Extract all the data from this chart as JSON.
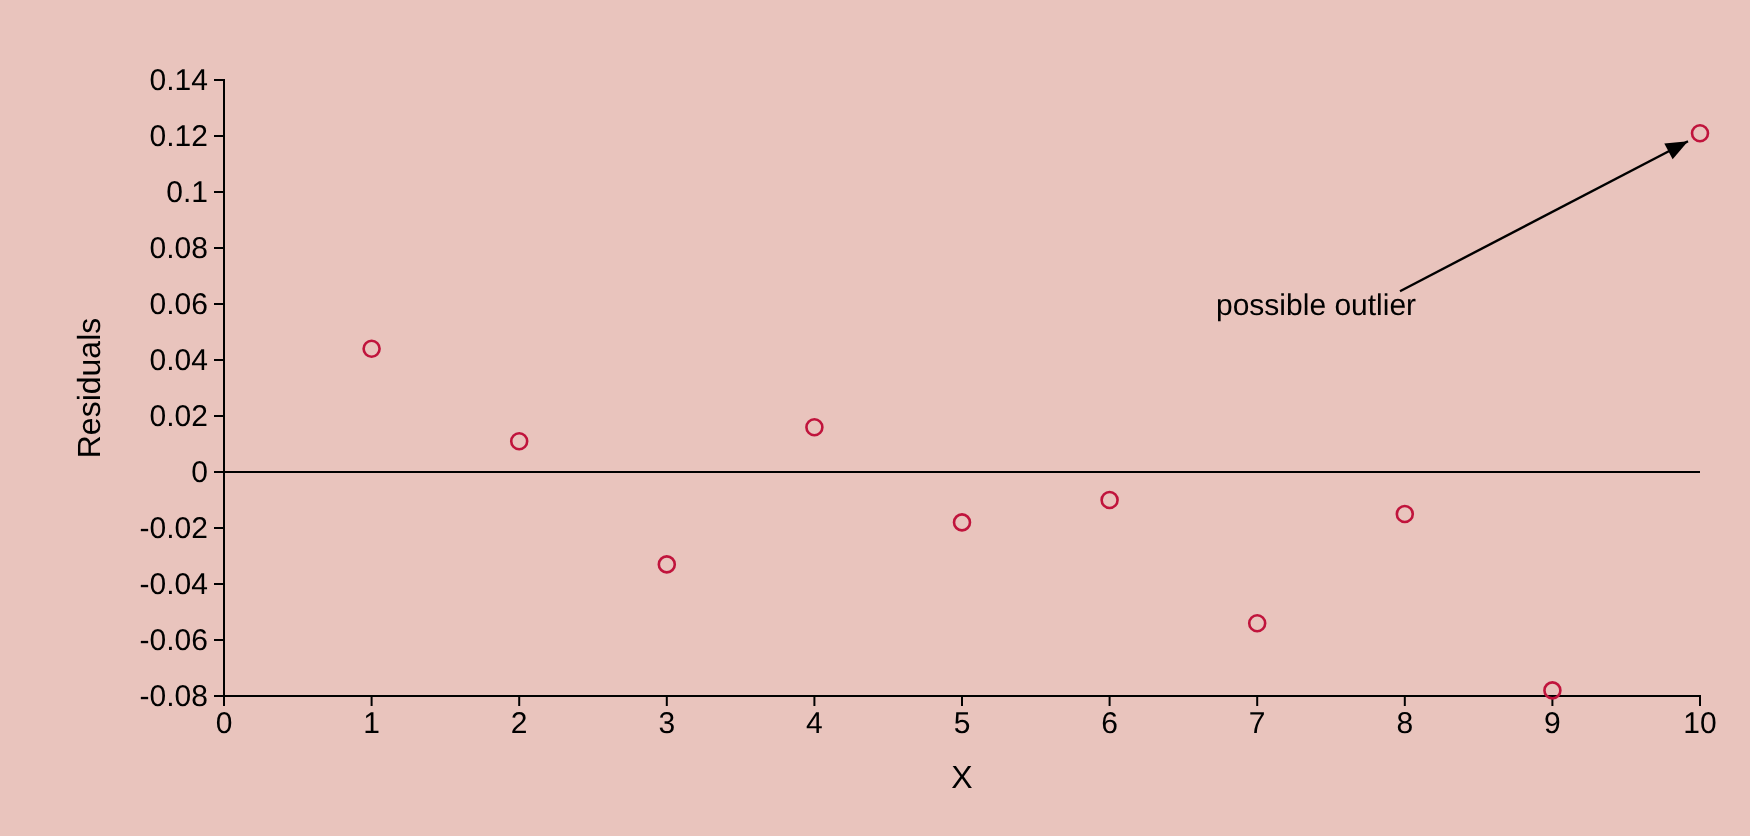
{
  "chart_data": {
    "type": "scatter",
    "xlabel": "X",
    "ylabel": "Residuals",
    "x": [
      1,
      2,
      3,
      4,
      5,
      6,
      7,
      8,
      9,
      10
    ],
    "series": [
      {
        "color": "#c0143c",
        "values": [
          0.044,
          0.011,
          -0.033,
          0.016,
          -0.018,
          -0.01,
          -0.054,
          -0.015,
          -0.078,
          0.121
        ]
      }
    ],
    "xlim": [
      0,
      10
    ],
    "xticks": [
      0,
      1,
      2,
      3,
      4,
      5,
      6,
      7,
      8,
      9,
      10
    ],
    "ylim": [
      -0.08,
      0.14
    ],
    "yticks": [
      {
        "value": -0.08,
        "label": "-0.08"
      },
      {
        "value": -0.06,
        "label": "-0.06"
      },
      {
        "value": -0.04,
        "label": "-0.04"
      },
      {
        "value": -0.02,
        "label": "-0.02"
      },
      0,
      {
        "value": 0.02,
        "label": "0.02"
      },
      {
        "value": 0.04,
        "label": "0.04"
      },
      {
        "value": 0.06,
        "label": "0.06"
      },
      {
        "value": 0.08,
        "label": "0.08"
      },
      0.1,
      {
        "value": 0.12,
        "label": "0.12"
      },
      {
        "value": 0.14,
        "label": "0.14"
      }
    ],
    "ref_lines": [
      {
        "axis": "y",
        "value": 0,
        "color": "#000000"
      }
    ],
    "annotations": [
      {
        "text": "possible outlier",
        "x": 10,
        "y": 0.121
      }
    ],
    "marker": "circle"
  }
}
